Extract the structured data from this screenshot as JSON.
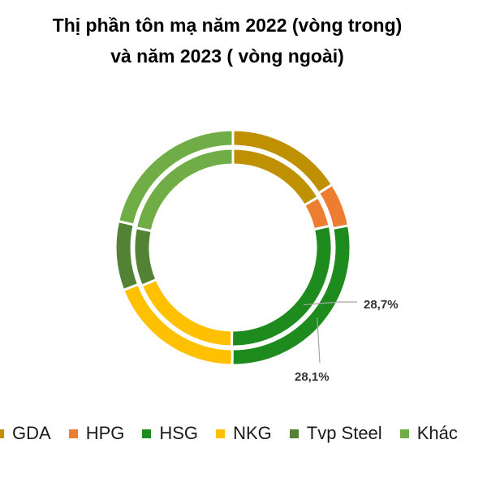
{
  "chart_data": {
    "type": "pie",
    "variant": "double-donut",
    "title_lines": [
      "Thị phần tôn mạ năm 2022 (vòng trong)",
      "và năm 2023 ( vòng ngoài)"
    ],
    "categories": [
      "GDA",
      "HPG",
      "HSG",
      "NKG",
      "Tvp Steel",
      "Khác"
    ],
    "colors": [
      "#BF9000",
      "#ED7D31",
      "#1E8B1E",
      "#FFC000",
      "#548235",
      "#70AD47"
    ],
    "series": [
      {
        "ring": "inner",
        "year": "2022",
        "values": [
          16.5,
          5.0,
          28.7,
          18.5,
          9.5,
          21.8
        ]
      },
      {
        "ring": "outer",
        "year": "2023",
        "values": [
          16.0,
          6.0,
          28.1,
          19.0,
          9.5,
          21.4
        ]
      }
    ],
    "data_labels": [
      {
        "ring": "inner",
        "category": "HSG",
        "text": "28,7%"
      },
      {
        "ring": "outer",
        "category": "HSG",
        "text": "28,1%"
      }
    ],
    "legend_position": "bottom"
  }
}
